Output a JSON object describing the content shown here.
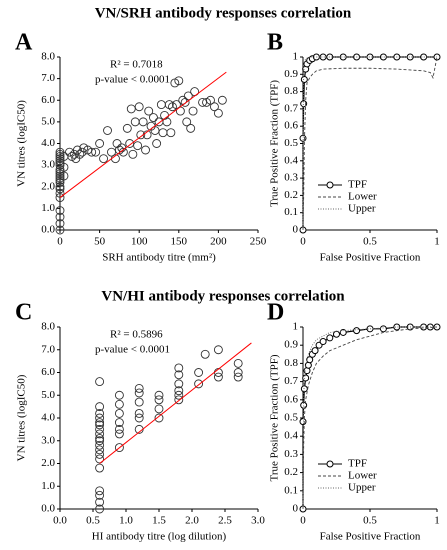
{
  "headings": [
    "VN/SRH antibody responses correlation",
    "VN/HI antibody responses correlation"
  ],
  "chart_data": [
    {
      "type": "scatter",
      "panel": "A",
      "x_label": "SRH antibody titre (mm²)",
      "y_label": "VN titres (logIC50)",
      "annotations": [
        "R² = 0.7018",
        "p-value < 0.0001"
      ],
      "xlim": [
        0,
        250
      ],
      "xticks": [
        0,
        50,
        100,
        150,
        200,
        250
      ],
      "ylim": [
        0,
        8
      ],
      "yticks": [
        {
          "value": 0,
          "label": "0.0"
        },
        {
          "value": 1,
          "label": "1.0"
        },
        {
          "value": 2,
          "label": "2.0"
        },
        {
          "value": 3,
          "label": "3.0"
        },
        {
          "value": 4,
          "label": "4.0"
        },
        {
          "value": 5,
          "label": "5.0"
        },
        {
          "value": 6,
          "label": "6.0"
        },
        {
          "value": 7,
          "label": "7.0"
        },
        {
          "value": 8,
          "label": "8.0"
        }
      ],
      "x": [
        0,
        0,
        0,
        0,
        0,
        0,
        0,
        0,
        0,
        0,
        0,
        0,
        0,
        0,
        0,
        0,
        0,
        0,
        0,
        0,
        0,
        0,
        5,
        5,
        5,
        12,
        15,
        18,
        20,
        22,
        25,
        28,
        30,
        35,
        40,
        45,
        50,
        55,
        60,
        65,
        70,
        72,
        75,
        78,
        80,
        85,
        88,
        90,
        92,
        95,
        98,
        100,
        102,
        105,
        108,
        110,
        112,
        115,
        118,
        120,
        122,
        125,
        128,
        130,
        132,
        135,
        138,
        140,
        142,
        145,
        147,
        150,
        152,
        155,
        158,
        160,
        162,
        165,
        168,
        170,
        180,
        185,
        190,
        195,
        200,
        205
      ],
      "values": [
        0,
        0.3,
        0.6,
        0.9,
        1.5,
        1.7,
        1.9,
        2.0,
        2.2,
        2.3,
        2.4,
        2.5,
        2.6,
        2.7,
        2.8,
        3.0,
        3.1,
        3.2,
        3.3,
        3.4,
        3.5,
        3.6,
        2.5,
        2.9,
        3.4,
        3.6,
        3.4,
        3.5,
        3.3,
        3.7,
        3.5,
        3.6,
        3.8,
        3.7,
        3.6,
        3.6,
        4.0,
        3.3,
        4.6,
        3.6,
        3.3,
        4.0,
        3.7,
        3.8,
        3.6,
        4.7,
        4.0,
        5.6,
        3.5,
        5.0,
        3.9,
        5.7,
        4.4,
        5.0,
        3.7,
        4.4,
        5.5,
        4.8,
        5.2,
        4.6,
        4.0,
        5.0,
        5.8,
        4.5,
        5.3,
        5.0,
        5.8,
        4.5,
        5.7,
        6.8,
        5.8,
        6.9,
        5.5,
        6.0,
        5.9,
        5.0,
        6.2,
        4.7,
        5.5,
        6.4,
        5.9,
        5.9,
        6.0,
        5.7,
        5.4,
        6.0
      ],
      "trendline": {
        "x": [
          0,
          210
        ],
        "y": [
          1.5,
          7.3
        ],
        "color": "#ff0000"
      }
    },
    {
      "type": "line",
      "panel": "B",
      "x_label": "False Positive Fraction",
      "y_label": "True Positive Fraction (TPF)",
      "legend": "lower left",
      "xlim": [
        0,
        1
      ],
      "xticks": [
        0,
        0.5,
        1
      ],
      "ylim": [
        0,
        1
      ],
      "yticks": [
        0,
        0.1,
        0.2,
        0.3,
        0.4,
        0.5,
        0.6,
        0.7,
        0.8,
        0.9,
        1
      ],
      "series": [
        {
          "name": "TPF",
          "style": "solid",
          "marker": "circle",
          "color": "#000000",
          "x": [
            0,
            0,
            0.005,
            0.01,
            0.02,
            0.03,
            0.05,
            0.07,
            0.1,
            0.15,
            0.2,
            0.3,
            0.4,
            0.5,
            0.6,
            0.7,
            0.8,
            0.9,
            1
          ],
          "values": [
            0,
            0.53,
            0.73,
            0.87,
            0.93,
            0.96,
            0.98,
            0.99,
            1,
            1,
            1,
            1,
            1,
            1,
            1,
            1,
            1,
            1,
            1
          ]
        },
        {
          "name": "Lower",
          "style": "dashed",
          "color": "#444444",
          "x": [
            0,
            0.005,
            0.01,
            0.02,
            0.03,
            0.05,
            0.07,
            0.1,
            0.15,
            0.3,
            0.5,
            0.7,
            0.9,
            0.95,
            0.97,
            1
          ],
          "values": [
            0,
            0.2,
            0.5,
            0.75,
            0.85,
            0.88,
            0.9,
            0.92,
            0.93,
            0.935,
            0.935,
            0.93,
            0.92,
            0.91,
            0.88,
            1
          ]
        },
        {
          "name": "Upper",
          "style": "dotted",
          "color": "#666666",
          "x": [
            0,
            0.002,
            0.005,
            0.01,
            0.02,
            0.05,
            0.1,
            1
          ],
          "values": [
            0,
            0.7,
            0.9,
            0.97,
            0.99,
            1,
            1,
            1
          ]
        }
      ]
    },
    {
      "type": "scatter",
      "panel": "C",
      "x_label": "HI antibody titre (log dilution)",
      "y_label": "VN titres (logIC50)",
      "annotations": [
        "R² = 0.5896",
        "p-value < 0.0001"
      ],
      "xlim": [
        0,
        3
      ],
      "xticks": [
        {
          "value": 0,
          "label": "0.0"
        },
        {
          "value": 0.5,
          "label": "0.5"
        },
        {
          "value": 1,
          "label": "1.0"
        },
        {
          "value": 1.5,
          "label": "1.5"
        },
        {
          "value": 2,
          "label": "2.0"
        },
        {
          "value": 2.5,
          "label": "2.5"
        },
        {
          "value": 3,
          "label": "3.0"
        }
      ],
      "ylim": [
        0,
        8
      ],
      "yticks": [
        {
          "value": 0,
          "label": "0.0"
        },
        {
          "value": 1,
          "label": "1.0"
        },
        {
          "value": 2,
          "label": "2.0"
        },
        {
          "value": 3,
          "label": "3.0"
        },
        {
          "value": 4,
          "label": "4.0"
        },
        {
          "value": 5,
          "label": "5.0"
        },
        {
          "value": 6,
          "label": "6.0"
        },
        {
          "value": 7,
          "label": "7.0"
        },
        {
          "value": 8,
          "label": "8.0"
        }
      ],
      "x": [
        0.6,
        0.6,
        0.6,
        0.6,
        0.6,
        0.6,
        0.6,
        0.6,
        0.6,
        0.6,
        0.6,
        0.6,
        0.6,
        0.6,
        0.6,
        0.6,
        0.6,
        0.6,
        0.6,
        0.9,
        0.9,
        0.9,
        0.9,
        0.9,
        0.9,
        0.9,
        1.2,
        1.2,
        1.2,
        1.2,
        1.2,
        1.2,
        1.5,
        1.5,
        1.5,
        1.5,
        1.8,
        1.8,
        1.8,
        1.8,
        1.8,
        1.8,
        2.1,
        2.1,
        2.2,
        2.4,
        2.4,
        2.4,
        2.7,
        2.7,
        2.7
      ],
      "values": [
        0,
        0.3,
        0.6,
        0.8,
        1.8,
        2.2,
        2.4,
        2.6,
        2.8,
        3.0,
        3.1,
        3.3,
        3.5,
        3.7,
        3.8,
        4.0,
        4.2,
        4.5,
        5.6,
        2.7,
        3.3,
        3.5,
        3.8,
        4.2,
        4.6,
        5.0,
        3.5,
        4.0,
        4.2,
        4.7,
        5.1,
        5.3,
        4.0,
        4.4,
        4.8,
        5.0,
        4.8,
        5.0,
        5.2,
        5.5,
        5.9,
        6.2,
        5.5,
        6.0,
        6.8,
        5.8,
        6.0,
        7.0,
        5.8,
        6.0,
        6.4
      ],
      "trendline": {
        "x": [
          0.6,
          2.9
        ],
        "y": [
          2.0,
          7.3
        ],
        "color": "#ff0000"
      }
    },
    {
      "type": "line",
      "panel": "D",
      "x_label": "False Positive Fraction",
      "y_label": "True Positive Fraction (TPF)",
      "legend": "lower left",
      "xlim": [
        0,
        1
      ],
      "xticks": [
        0,
        0.5,
        1
      ],
      "ylim": [
        0,
        1
      ],
      "yticks": [
        0,
        0.1,
        0.2,
        0.3,
        0.4,
        0.5,
        0.6,
        0.7,
        0.8,
        0.9,
        1
      ],
      "series": [
        {
          "name": "TPF",
          "style": "solid",
          "marker": "circle",
          "color": "#000000",
          "x": [
            0,
            0,
            0.005,
            0.01,
            0.02,
            0.03,
            0.04,
            0.05,
            0.07,
            0.09,
            0.12,
            0.15,
            0.2,
            0.25,
            0.3,
            0.4,
            0.5,
            0.6,
            0.7,
            0.8,
            0.9,
            0.95,
            1
          ],
          "values": [
            0,
            0.48,
            0.57,
            0.66,
            0.72,
            0.76,
            0.79,
            0.82,
            0.85,
            0.87,
            0.9,
            0.92,
            0.94,
            0.96,
            0.97,
            0.98,
            0.99,
            0.99,
            1,
            1,
            1,
            1,
            1
          ]
        },
        {
          "name": "Lower",
          "style": "dashed",
          "color": "#444444",
          "x": [
            0,
            0.005,
            0.01,
            0.02,
            0.04,
            0.07,
            0.1,
            0.15,
            0.2,
            0.3,
            0.4,
            0.5,
            0.6,
            0.8,
            1
          ],
          "values": [
            0,
            0.35,
            0.5,
            0.6,
            0.68,
            0.75,
            0.8,
            0.84,
            0.87,
            0.9,
            0.93,
            0.95,
            0.97,
            0.99,
            1
          ]
        },
        {
          "name": "Upper",
          "style": "dotted",
          "color": "#666666",
          "x": [
            0,
            0.005,
            0.01,
            0.02,
            0.04,
            0.07,
            0.1,
            0.15,
            0.2,
            0.3,
            0.5,
            0.7,
            1
          ],
          "values": [
            0,
            0.62,
            0.7,
            0.78,
            0.85,
            0.9,
            0.93,
            0.95,
            0.97,
            0.98,
            0.99,
            1,
            1
          ]
        }
      ]
    }
  ]
}
